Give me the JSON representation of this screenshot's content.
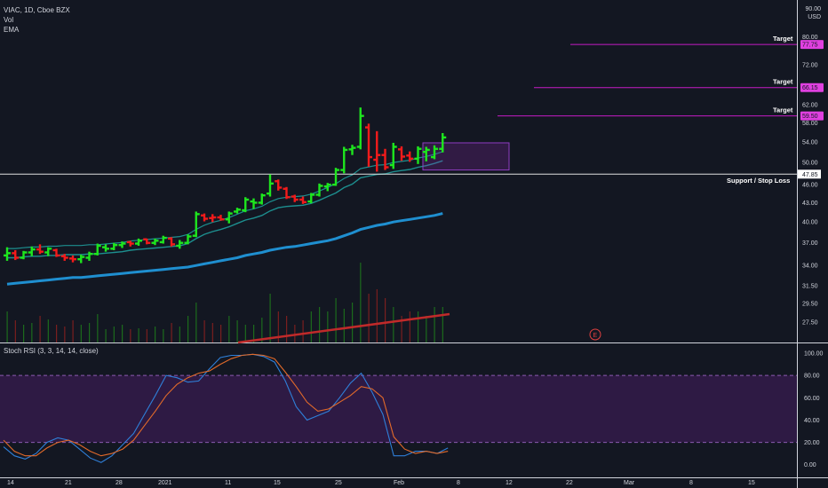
{
  "header": {
    "symbol_line": "VIAC, 1D, Cboe BZX",
    "vol_label": "Vol",
    "ema_label": "EMA",
    "unit_top": "90.00",
    "unit_currency": "USD"
  },
  "rsi_panel": {
    "label": "Stoch RSI (3, 3, 14, 14, close)"
  },
  "colors": {
    "background": "#131722",
    "up_bar": "#1ee61e",
    "down_bar": "#f21b1b",
    "ema_fast": "#1d8f8f",
    "ema_slow": "#1f8fd0",
    "target_line": "#c51bc5",
    "target_badge": "#e040e0",
    "rsi_band": "#2e1a44",
    "rsi_k": "#2f7fd8",
    "rsi_d": "#e26a2a",
    "vol_trend": "#c02a2a",
    "support_line": "#e0e0e0"
  },
  "chart_data": [
    {
      "type": "ohlc",
      "title": "VIAC, 1D, Cboe BZX",
      "y_scale": "log",
      "ylim": [
        26,
        90
      ],
      "y_ticks": [
        "90.00",
        "80.00",
        "72.00",
        "62.00",
        "58.00",
        "54.00",
        "50.00",
        "46.00",
        "43.00",
        "40.00",
        "37.00",
        "34.00",
        "31.50",
        "29.50",
        "27.50"
      ],
      "x_ticks": [
        "14",
        "21",
        "28",
        "2021",
        "11",
        "15",
        "25",
        "Feb",
        "8",
        "12",
        "22",
        "Mar",
        "8",
        "15"
      ],
      "bars": [
        {
          "o": 35.3,
          "h": 36.4,
          "l": 34.6,
          "c": 35.6,
          "up": true
        },
        {
          "o": 35.6,
          "h": 36.0,
          "l": 34.7,
          "c": 35.0,
          "up": false
        },
        {
          "o": 35.0,
          "h": 35.9,
          "l": 34.8,
          "c": 35.7,
          "up": true
        },
        {
          "o": 35.7,
          "h": 36.5,
          "l": 35.2,
          "c": 36.1,
          "up": true
        },
        {
          "o": 36.1,
          "h": 36.8,
          "l": 35.5,
          "c": 35.8,
          "up": false
        },
        {
          "o": 35.7,
          "h": 36.4,
          "l": 35.2,
          "c": 36.2,
          "up": true
        },
        {
          "o": 36.0,
          "h": 36.2,
          "l": 35.1,
          "c": 35.3,
          "up": false
        },
        {
          "o": 35.2,
          "h": 35.5,
          "l": 34.6,
          "c": 35.0,
          "up": false
        },
        {
          "o": 34.9,
          "h": 35.3,
          "l": 34.4,
          "c": 34.8,
          "up": false
        },
        {
          "o": 34.8,
          "h": 35.4,
          "l": 34.3,
          "c": 35.1,
          "up": true
        },
        {
          "o": 35.0,
          "h": 35.8,
          "l": 34.6,
          "c": 35.5,
          "up": true
        },
        {
          "o": 35.5,
          "h": 36.9,
          "l": 35.3,
          "c": 36.6,
          "up": true
        },
        {
          "o": 36.4,
          "h": 36.8,
          "l": 35.8,
          "c": 36.2,
          "up": true
        },
        {
          "o": 36.2,
          "h": 37.0,
          "l": 36.0,
          "c": 36.7,
          "up": true
        },
        {
          "o": 36.7,
          "h": 37.2,
          "l": 36.3,
          "c": 36.9,
          "up": true
        },
        {
          "o": 37.1,
          "h": 37.3,
          "l": 36.5,
          "c": 36.9,
          "up": false
        },
        {
          "o": 36.9,
          "h": 37.6,
          "l": 36.6,
          "c": 37.3,
          "up": true
        },
        {
          "o": 37.5,
          "h": 37.6,
          "l": 36.8,
          "c": 37.0,
          "up": false
        },
        {
          "o": 37.0,
          "h": 37.6,
          "l": 36.7,
          "c": 37.3,
          "up": true
        },
        {
          "o": 37.1,
          "h": 38.0,
          "l": 36.9,
          "c": 37.7,
          "up": true
        },
        {
          "o": 37.6,
          "h": 37.8,
          "l": 36.5,
          "c": 36.8,
          "up": false
        },
        {
          "o": 36.6,
          "h": 37.4,
          "l": 36.2,
          "c": 37.0,
          "up": true
        },
        {
          "o": 37.0,
          "h": 38.2,
          "l": 36.8,
          "c": 37.9,
          "up": true
        },
        {
          "o": 38.0,
          "h": 41.6,
          "l": 37.8,
          "c": 41.2,
          "up": true
        },
        {
          "o": 41.0,
          "h": 41.3,
          "l": 40.1,
          "c": 40.5,
          "up": false
        },
        {
          "o": 40.6,
          "h": 41.2,
          "l": 40.0,
          "c": 40.7,
          "up": false
        },
        {
          "o": 40.7,
          "h": 41.1,
          "l": 40.2,
          "c": 40.4,
          "up": false
        },
        {
          "o": 40.4,
          "h": 41.6,
          "l": 39.8,
          "c": 41.3,
          "up": true
        },
        {
          "o": 41.6,
          "h": 42.2,
          "l": 41.3,
          "c": 41.9,
          "up": true
        },
        {
          "o": 41.8,
          "h": 43.9,
          "l": 41.5,
          "c": 43.5,
          "up": true
        },
        {
          "o": 43.2,
          "h": 43.7,
          "l": 42.0,
          "c": 43.0,
          "up": true
        },
        {
          "o": 43.0,
          "h": 44.5,
          "l": 42.7,
          "c": 44.2,
          "up": true
        },
        {
          "o": 44.5,
          "h": 47.8,
          "l": 44.0,
          "c": 46.2,
          "up": true
        },
        {
          "o": 46.6,
          "h": 46.9,
          "l": 45.0,
          "c": 45.5,
          "up": false
        },
        {
          "o": 45.3,
          "h": 45.6,
          "l": 43.6,
          "c": 43.9,
          "up": false
        },
        {
          "o": 44.0,
          "h": 44.3,
          "l": 43.1,
          "c": 43.5,
          "up": false
        },
        {
          "o": 43.5,
          "h": 44.0,
          "l": 42.8,
          "c": 43.1,
          "up": false
        },
        {
          "o": 43.2,
          "h": 44.6,
          "l": 42.9,
          "c": 44.3,
          "up": true
        },
        {
          "o": 44.3,
          "h": 46.2,
          "l": 44.0,
          "c": 45.8,
          "up": true
        },
        {
          "o": 45.7,
          "h": 46.3,
          "l": 44.9,
          "c": 46.0,
          "up": true
        },
        {
          "o": 46.0,
          "h": 49.0,
          "l": 45.8,
          "c": 48.6,
          "up": true
        },
        {
          "o": 48.6,
          "h": 53.0,
          "l": 48.0,
          "c": 52.4,
          "up": true
        },
        {
          "o": 52.5,
          "h": 53.4,
          "l": 51.4,
          "c": 52.8,
          "up": true
        },
        {
          "o": 53.0,
          "h": 61.4,
          "l": 52.5,
          "c": 59.5,
          "up": true
        },
        {
          "o": 57.0,
          "h": 57.8,
          "l": 49.2,
          "c": 51.0,
          "up": false
        },
        {
          "o": 50.5,
          "h": 56.2,
          "l": 48.3,
          "c": 51.4,
          "up": false
        },
        {
          "o": 51.4,
          "h": 52.6,
          "l": 48.6,
          "c": 49.1,
          "up": false
        },
        {
          "o": 49.5,
          "h": 53.8,
          "l": 48.8,
          "c": 53.0,
          "up": true
        },
        {
          "o": 52.5,
          "h": 53.1,
          "l": 50.3,
          "c": 51.1,
          "up": false
        },
        {
          "o": 51.3,
          "h": 52.1,
          "l": 50.1,
          "c": 50.7,
          "up": false
        },
        {
          "o": 50.7,
          "h": 53.1,
          "l": 49.7,
          "c": 52.6,
          "up": true
        },
        {
          "o": 52.0,
          "h": 53.0,
          "l": 50.2,
          "c": 52.4,
          "up": true
        },
        {
          "o": 51.0,
          "h": 53.3,
          "l": 50.6,
          "c": 52.6,
          "up": true
        },
        {
          "o": 52.6,
          "h": 55.8,
          "l": 51.9,
          "c": 54.9,
          "up": true
        }
      ],
      "ema_fast": [
        35.0,
        35.0,
        35.1,
        35.2,
        35.2,
        35.3,
        35.3,
        35.4,
        35.4,
        35.4,
        35.5,
        35.5,
        35.6,
        35.7,
        35.8,
        36.0,
        36.1,
        36.2,
        36.3,
        36.4,
        36.5,
        36.6,
        36.9,
        37.6,
        38.2,
        38.6,
        38.9,
        39.3,
        39.8,
        40.3,
        40.6,
        41.0,
        41.7,
        42.2,
        42.4,
        42.5,
        42.6,
        42.9,
        43.4,
        44.0,
        44.6,
        45.5,
        46.1,
        47.2,
        47.5,
        47.8,
        47.9,
        48.3,
        48.5,
        48.7,
        49.1,
        49.4,
        49.8,
        50.3
      ],
      "ema_slow": [
        31.7,
        31.8,
        31.9,
        32.0,
        32.1,
        32.2,
        32.3,
        32.4,
        32.5,
        32.5,
        32.6,
        32.7,
        32.8,
        32.9,
        33.0,
        33.1,
        33.2,
        33.3,
        33.4,
        33.5,
        33.6,
        33.7,
        33.8,
        34.0,
        34.2,
        34.4,
        34.6,
        34.8,
        35.0,
        35.3,
        35.5,
        35.7,
        36.0,
        36.2,
        36.4,
        36.5,
        36.7,
        36.9,
        37.1,
        37.3,
        37.6,
        38.0,
        38.4,
        38.9,
        39.2,
        39.5,
        39.7,
        40.0,
        40.2,
        40.4,
        40.6,
        40.8,
        41.0,
        41.3
      ],
      "volume_rel": [
        0.35,
        0.25,
        0.2,
        0.22,
        0.3,
        0.26,
        0.2,
        0.18,
        0.25,
        0.2,
        0.22,
        0.32,
        0.15,
        0.18,
        0.2,
        0.15,
        0.16,
        0.15,
        0.18,
        0.15,
        0.22,
        0.18,
        0.3,
        0.45,
        0.25,
        0.22,
        0.2,
        0.3,
        0.25,
        0.2,
        0.2,
        0.28,
        0.55,
        0.35,
        0.3,
        0.2,
        0.25,
        0.35,
        0.4,
        0.35,
        0.5,
        0.38,
        0.45,
        0.9,
        0.55,
        0.6,
        0.5,
        0.4,
        0.3,
        0.35,
        0.35,
        0.3,
        0.4,
        0.4
      ],
      "support": {
        "value": 47.85,
        "label": "Support / Stop Loss",
        "price_label": "47.85"
      },
      "targets": [
        {
          "value": 77.75,
          "label": "Target",
          "price_label": "77.75"
        },
        {
          "value": 66.15,
          "label": "Target",
          "price_label": "66.15"
        },
        {
          "value": 59.5,
          "label": "Target",
          "price_label": "59.50"
        }
      ],
      "box": {
        "y_top": 53.8,
        "y_bottom": 48.6
      }
    },
    {
      "type": "line",
      "title": "Stoch RSI (3, 3, 14, 14, close)",
      "ylim": [
        -5,
        105
      ],
      "y_ticks": [
        "100.00",
        "80.00",
        "60.00",
        "40.00",
        "20.00",
        "0.00"
      ],
      "band": [
        20,
        80
      ],
      "series": [
        {
          "name": "K",
          "values": [
            16,
            8,
            5,
            10,
            20,
            24,
            22,
            14,
            6,
            2,
            8,
            18,
            28,
            45,
            62,
            80,
            78,
            74,
            75,
            86,
            96,
            98,
            98,
            99,
            97,
            92,
            75,
            52,
            40,
            44,
            48,
            60,
            73,
            82,
            65,
            45,
            8,
            8,
            12,
            12,
            10,
            15
          ]
        },
        {
          "name": "D",
          "values": [
            22,
            12,
            8,
            8,
            15,
            20,
            22,
            18,
            12,
            8,
            10,
            14,
            22,
            35,
            48,
            62,
            72,
            78,
            82,
            84,
            90,
            95,
            98,
            99,
            98,
            95,
            83,
            70,
            56,
            48,
            50,
            56,
            62,
            70,
            68,
            60,
            25,
            14,
            10,
            12,
            10,
            12
          ]
        }
      ]
    }
  ]
}
